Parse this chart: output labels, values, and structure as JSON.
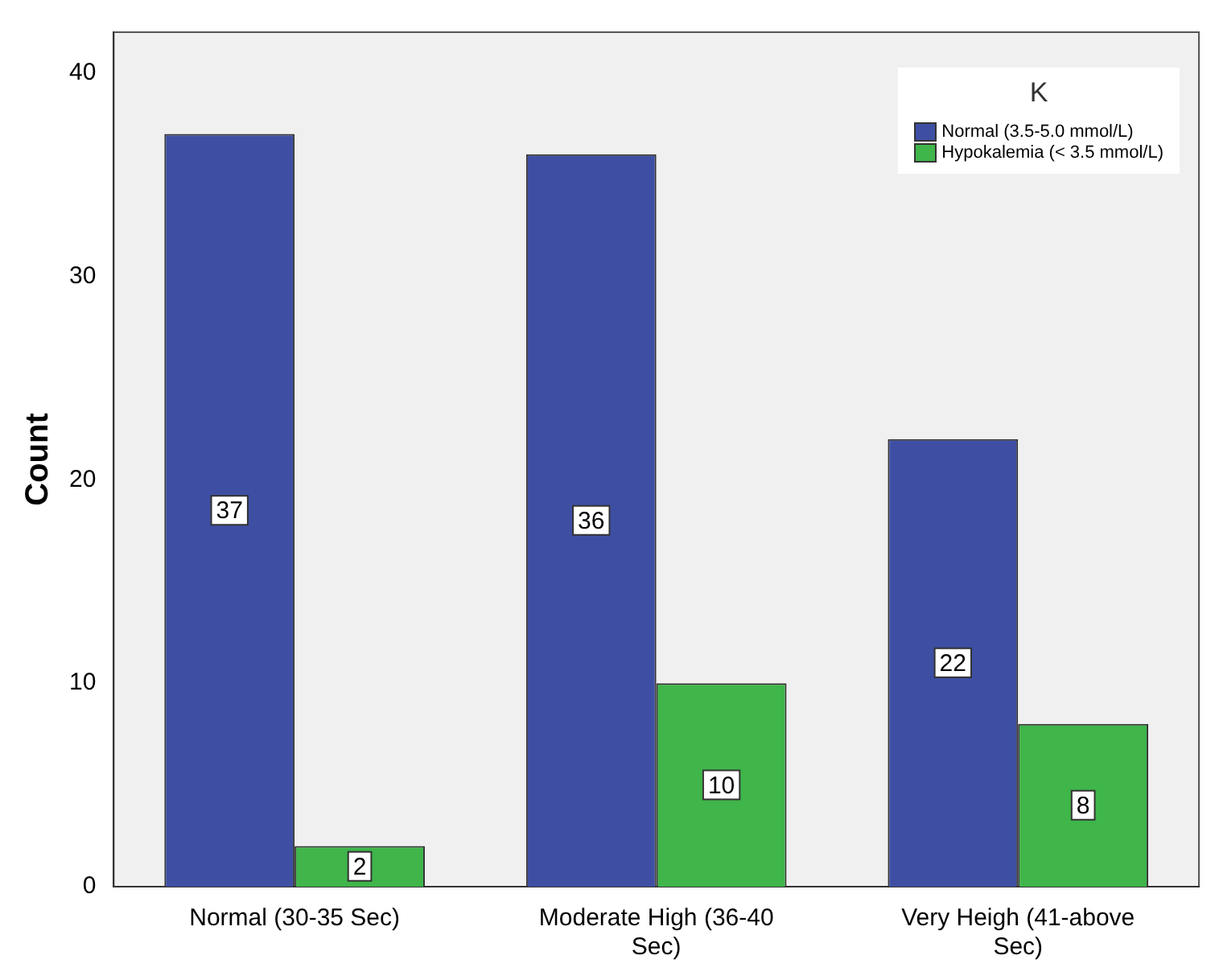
{
  "chart_data": {
    "type": "bar",
    "ylabel": "Count",
    "legend_title": "K",
    "categories": [
      "Normal (30-35 Sec)",
      "Moderate High (36-40 Sec)",
      "Very Heigh (41-above Sec)"
    ],
    "series": [
      {
        "name": "Normal (3.5-5.0 mmol/L)",
        "color": "#3e4fa3",
        "values": [
          37,
          36,
          22
        ]
      },
      {
        "name": "Hypokalemia (< 3.5 mmol/L)",
        "color": "#3fb54a",
        "values": [
          2,
          10,
          8
        ]
      }
    ],
    "ylim": [
      0,
      42
    ],
    "yticks": [
      0,
      10,
      20,
      30,
      40
    ],
    "grid": false,
    "legend": "top right",
    "data_labels": true
  }
}
